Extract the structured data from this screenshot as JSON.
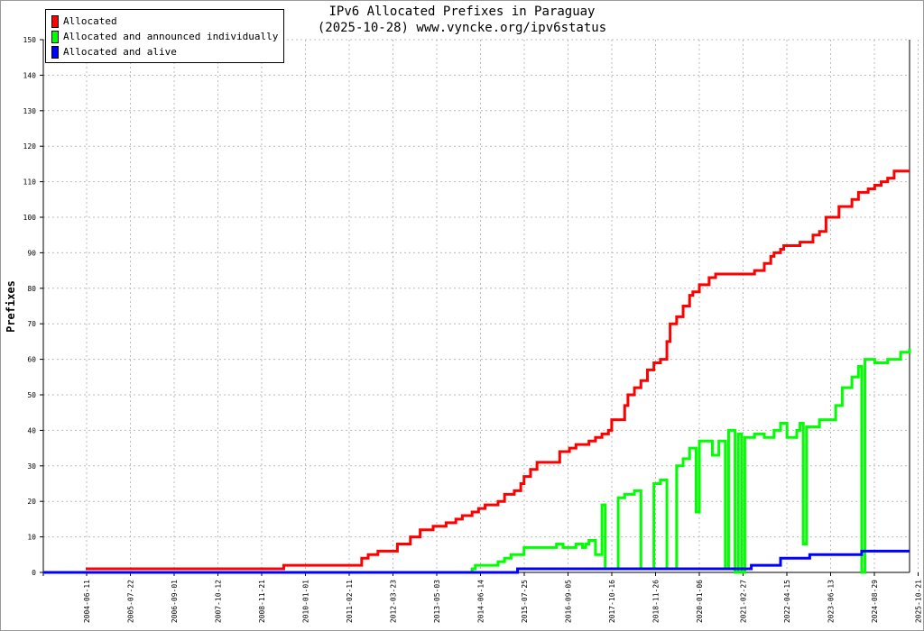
{
  "chart_data": {
    "type": "line",
    "title": "IPv6 Allocated Prefixes in Paraguay",
    "subtitle": "(2025-10-28) www.vyncke.org/ipv6status",
    "ylabel": "Prefixes",
    "xlabel": "",
    "ylim": [
      0,
      150
    ],
    "yticks": [
      0,
      10,
      20,
      30,
      40,
      50,
      60,
      70,
      80,
      90,
      100,
      110,
      120,
      130,
      140,
      150
    ],
    "xticks": [
      "2004-06-11",
      "2005-07-22",
      "2006-09-01",
      "2007-10-12",
      "2008-11-21",
      "2010-01-01",
      "2011-02-11",
      "2012-03-23",
      "2013-05-03",
      "2014-06-14",
      "2015-07-25",
      "2016-09-05",
      "2017-10-16",
      "2018-11-26",
      "2020-01-06",
      "2021-02-27",
      "2022-04-15",
      "2023-06-13",
      "2024-08-29",
      "2025-10-21"
    ],
    "grid": true,
    "legend_position": "top-left",
    "series": [
      {
        "name": "Allocated",
        "color": "#ff0000",
        "points": [
          [
            "2004-06",
            1
          ],
          [
            "2009-07",
            2
          ],
          [
            "2011-07",
            4
          ],
          [
            "2011-09",
            5
          ],
          [
            "2011-12",
            6
          ],
          [
            "2012-06",
            8
          ],
          [
            "2012-10",
            10
          ],
          [
            "2013-01",
            12
          ],
          [
            "2013-05",
            13
          ],
          [
            "2013-09",
            14
          ],
          [
            "2013-12",
            15
          ],
          [
            "2014-02",
            16
          ],
          [
            "2014-05",
            17
          ],
          [
            "2014-07",
            18
          ],
          [
            "2014-09",
            19
          ],
          [
            "2015-01",
            20
          ],
          [
            "2015-03",
            22
          ],
          [
            "2015-06",
            23
          ],
          [
            "2015-08",
            25
          ],
          [
            "2015-09",
            27
          ],
          [
            "2015-11",
            29
          ],
          [
            "2016-01",
            31
          ],
          [
            "2016-08",
            34
          ],
          [
            "2016-11",
            35
          ],
          [
            "2017-01",
            36
          ],
          [
            "2017-05",
            37
          ],
          [
            "2017-07",
            38
          ],
          [
            "2017-09",
            39
          ],
          [
            "2017-11",
            40
          ],
          [
            "2017-12",
            43
          ],
          [
            "2018-04",
            47
          ],
          [
            "2018-05",
            50
          ],
          [
            "2018-07",
            52
          ],
          [
            "2018-09",
            54
          ],
          [
            "2018-11",
            57
          ],
          [
            "2019-01",
            59
          ],
          [
            "2019-03",
            60
          ],
          [
            "2019-05",
            65
          ],
          [
            "2019-06",
            70
          ],
          [
            "2019-08",
            72
          ],
          [
            "2019-10",
            75
          ],
          [
            "2019-12",
            78
          ],
          [
            "2020-01",
            79
          ],
          [
            "2020-03",
            81
          ],
          [
            "2020-06",
            83
          ],
          [
            "2020-08",
            84
          ],
          [
            "2021-08",
            85
          ],
          [
            "2021-11",
            87
          ],
          [
            "2022-01",
            89
          ],
          [
            "2022-02",
            90
          ],
          [
            "2022-04",
            91
          ],
          [
            "2022-05",
            92
          ],
          [
            "2022-10",
            93
          ],
          [
            "2023-02",
            95
          ],
          [
            "2023-04",
            96
          ],
          [
            "2023-06",
            100
          ],
          [
            "2023-10",
            103
          ],
          [
            "2024-02",
            105
          ],
          [
            "2024-04",
            107
          ],
          [
            "2024-07",
            108
          ],
          [
            "2024-09",
            109
          ],
          [
            "2024-11",
            110
          ],
          [
            "2025-01",
            111
          ],
          [
            "2025-03",
            113
          ],
          [
            "2025-10",
            113
          ]
        ]
      },
      {
        "name": "Allocated and announced individually",
        "color": "#00ff00",
        "points": [
          [
            "2003-05",
            0
          ],
          [
            "2014-05",
            1
          ],
          [
            "2014-06",
            2
          ],
          [
            "2015-01",
            3
          ],
          [
            "2015-03",
            4
          ],
          [
            "2015-05",
            5
          ],
          [
            "2015-09",
            7
          ],
          [
            "2016-07",
            8
          ],
          [
            "2016-09",
            7
          ],
          [
            "2017-01",
            8
          ],
          [
            "2017-03",
            7
          ],
          [
            "2017-04",
            8
          ],
          [
            "2017-05",
            9
          ],
          [
            "2017-07",
            5
          ],
          [
            "2017-09",
            19
          ],
          [
            "2017-10",
            1
          ],
          [
            "2018-02",
            21
          ],
          [
            "2018-04",
            22
          ],
          [
            "2018-07",
            23
          ],
          [
            "2018-09",
            1
          ],
          [
            "2019-01",
            25
          ],
          [
            "2019-03",
            26
          ],
          [
            "2019-05",
            1
          ],
          [
            "2019-08",
            30
          ],
          [
            "2019-10",
            32
          ],
          [
            "2019-12",
            35
          ],
          [
            "2020-02",
            17
          ],
          [
            "2020-03",
            37
          ],
          [
            "2020-07",
            33
          ],
          [
            "2020-09",
            37
          ],
          [
            "2020-11",
            1
          ],
          [
            "2020-12",
            40
          ],
          [
            "2021-02",
            0
          ],
          [
            "2021-03",
            39
          ],
          [
            "2021-04",
            0
          ],
          [
            "2021-05",
            38
          ],
          [
            "2021-08",
            39
          ],
          [
            "2021-11",
            38
          ],
          [
            "2022-02",
            40
          ],
          [
            "2022-04",
            42
          ],
          [
            "2022-06",
            38
          ],
          [
            "2022-09",
            40
          ],
          [
            "2022-10",
            42
          ],
          [
            "2022-11",
            8
          ],
          [
            "2022-12",
            41
          ],
          [
            "2023-04",
            43
          ],
          [
            "2023-09",
            47
          ],
          [
            "2023-11",
            52
          ],
          [
            "2024-02",
            55
          ],
          [
            "2024-04",
            58
          ],
          [
            "2024-05",
            0
          ],
          [
            "2024-06",
            60
          ],
          [
            "2024-09",
            59
          ],
          [
            "2025-01",
            60
          ],
          [
            "2025-05",
            62
          ],
          [
            "2025-10",
            63
          ]
        ]
      },
      {
        "name": "Allocated and alive",
        "color": "#0000ff",
        "points": [
          [
            "2003-05",
            0
          ],
          [
            "2015-07",
            1
          ],
          [
            "2021-07",
            2
          ],
          [
            "2022-04",
            4
          ],
          [
            "2023-01",
            5
          ],
          [
            "2024-05",
            6
          ],
          [
            "2025-10",
            6
          ]
        ]
      }
    ]
  }
}
